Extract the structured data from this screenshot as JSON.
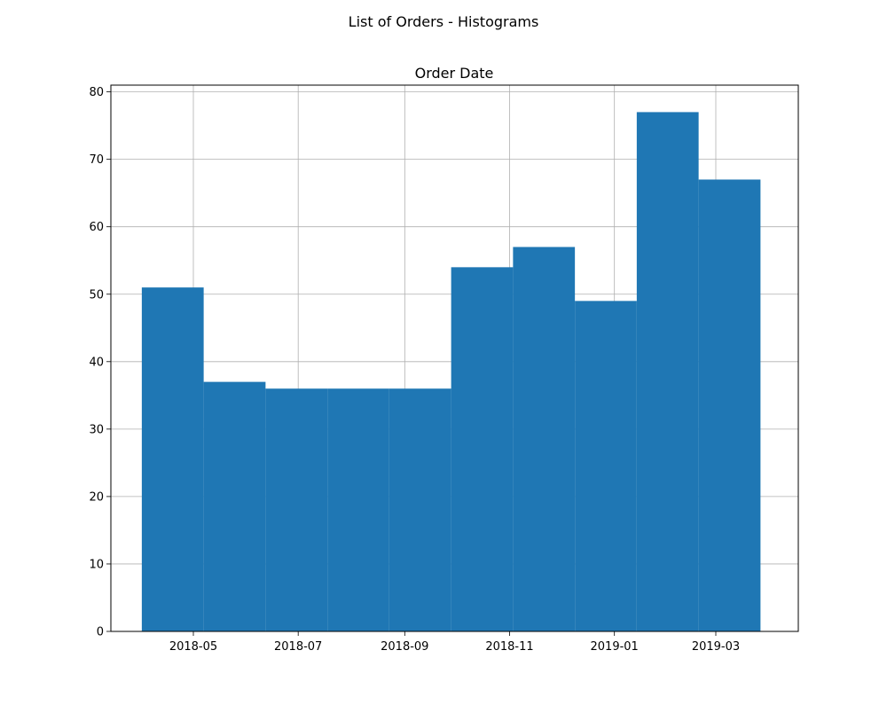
{
  "figure": {
    "suptitle": "List of Orders - Histograms"
  },
  "chart_data": {
    "type": "bar",
    "title": "Order Date",
    "xlabel": "",
    "ylabel": "",
    "x_axis": "date",
    "xlim": [
      "2018-03-14",
      "2019-04-18"
    ],
    "ylim": [
      0,
      81
    ],
    "yticks": [
      0,
      10,
      20,
      30,
      40,
      50,
      60,
      70,
      80
    ],
    "xticks": [
      {
        "date": "2018-05-01",
        "label": "2018-05"
      },
      {
        "date": "2018-07-01",
        "label": "2018-07"
      },
      {
        "date": "2018-09-01",
        "label": "2018-09"
      },
      {
        "date": "2018-11-01",
        "label": "2018-11"
      },
      {
        "date": "2019-01-01",
        "label": "2019-01"
      },
      {
        "date": "2019-03-01",
        "label": "2019-03"
      }
    ],
    "bin_edges": [
      "2018-04-01",
      "2018-05-07",
      "2018-06-12",
      "2018-07-18",
      "2018-08-23",
      "2018-09-28",
      "2018-11-03",
      "2018-12-09",
      "2019-01-14",
      "2019-02-19",
      "2019-03-27"
    ],
    "values": [
      51,
      37,
      36,
      36,
      36,
      54,
      57,
      49,
      77,
      67
    ],
    "grid": true,
    "bar_color": "#1f77b4"
  }
}
